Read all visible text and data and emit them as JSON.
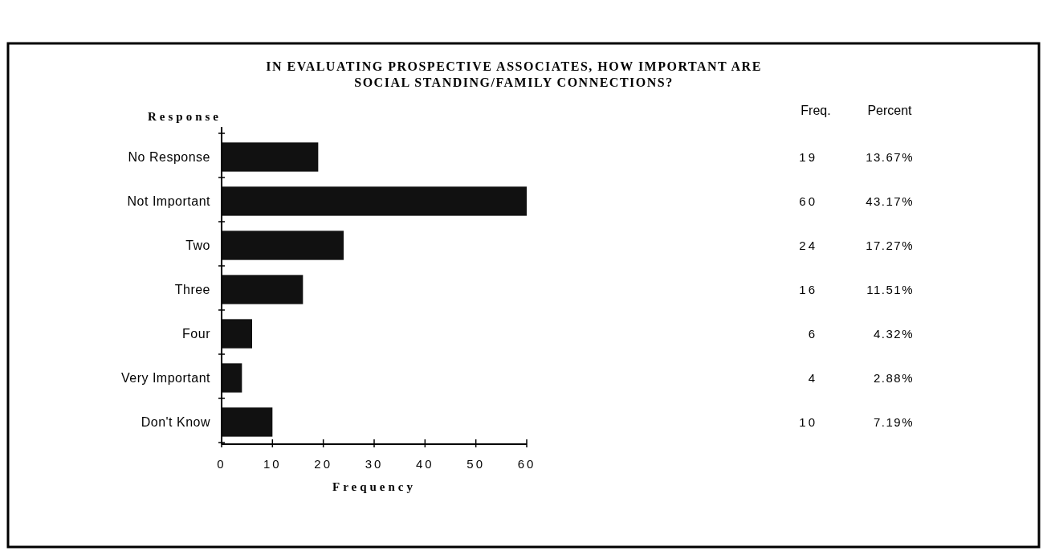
{
  "chart_data": {
    "type": "bar",
    "orientation": "horizontal",
    "title": "IN EVALUATING PROSPECTIVE ASSOCIATES, HOW IMPORTANT ARE\nSOCIAL STANDING/FAMILY CONNECTIONS?",
    "ylabel": "Response",
    "xlabel": "Frequency",
    "categories": [
      "No Response",
      "Not Important",
      "Two",
      "Three",
      "Four",
      "Very Important",
      "Don't Know"
    ],
    "values": [
      19,
      60,
      24,
      16,
      6,
      4,
      10
    ],
    "color": "#111111",
    "xlim": [
      0,
      60
    ],
    "xticks": [
      0,
      10,
      20,
      30,
      40,
      50,
      60
    ],
    "grid": false,
    "data_labels": true,
    "annotations": [
      "Freq.",
      "Percent",
      "13.67%",
      "43.17%",
      "17.27%",
      "11.51%",
      "4.32%",
      "2.88%",
      "7.19%"
    ]
  }
}
